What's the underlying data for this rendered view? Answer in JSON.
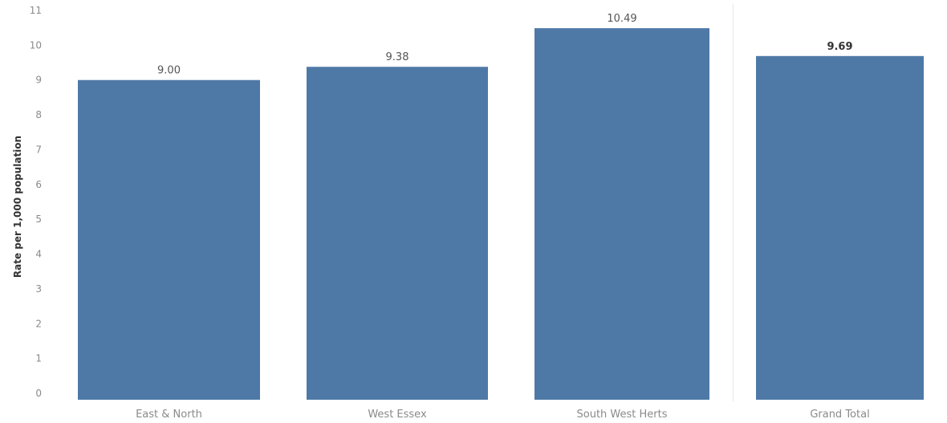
{
  "chart_data": {
    "type": "bar",
    "title": "",
    "xlabel": "",
    "ylabel": "Rate per 1,000 population",
    "categories": [
      "East & North",
      "West Essex",
      "South West Herts",
      "Grand Total"
    ],
    "values": [
      9.0,
      9.38,
      10.49,
      9.69
    ],
    "value_labels": [
      "9.00",
      "9.38",
      "10.49",
      "9.69"
    ],
    "ylim": [
      0,
      11
    ],
    "yticks": [
      0,
      1,
      2,
      3,
      4,
      5,
      6,
      7,
      8,
      9,
      10,
      11
    ],
    "bar_color": "#4e79a7",
    "grid": false,
    "legend": "none"
  }
}
